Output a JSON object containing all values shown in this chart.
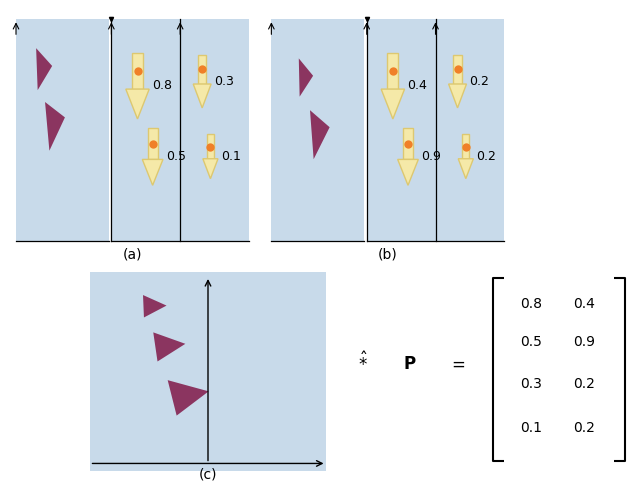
{
  "bg_color": "#c8daea",
  "tri_color": "#8b3560",
  "arrow_fill": "#f5e9a8",
  "arrow_edge": "#ddc870",
  "dot_color": "#f08028",
  "vals_a_diag": [
    "0.8",
    "0.5"
  ],
  "vals_a_vert": [
    "0.3",
    "0.1"
  ],
  "vals_b_diag": [
    "0.4",
    "0.9"
  ],
  "vals_b_vert": [
    "0.2",
    "0.2"
  ],
  "matrix_col1": [
    "0.8",
    "0.5",
    "0.3",
    "0.1"
  ],
  "matrix_col2": [
    "0.4",
    "0.9",
    "0.2",
    "0.2"
  ],
  "label_a": "(a)",
  "label_b": "(b)",
  "label_c": "(c)"
}
